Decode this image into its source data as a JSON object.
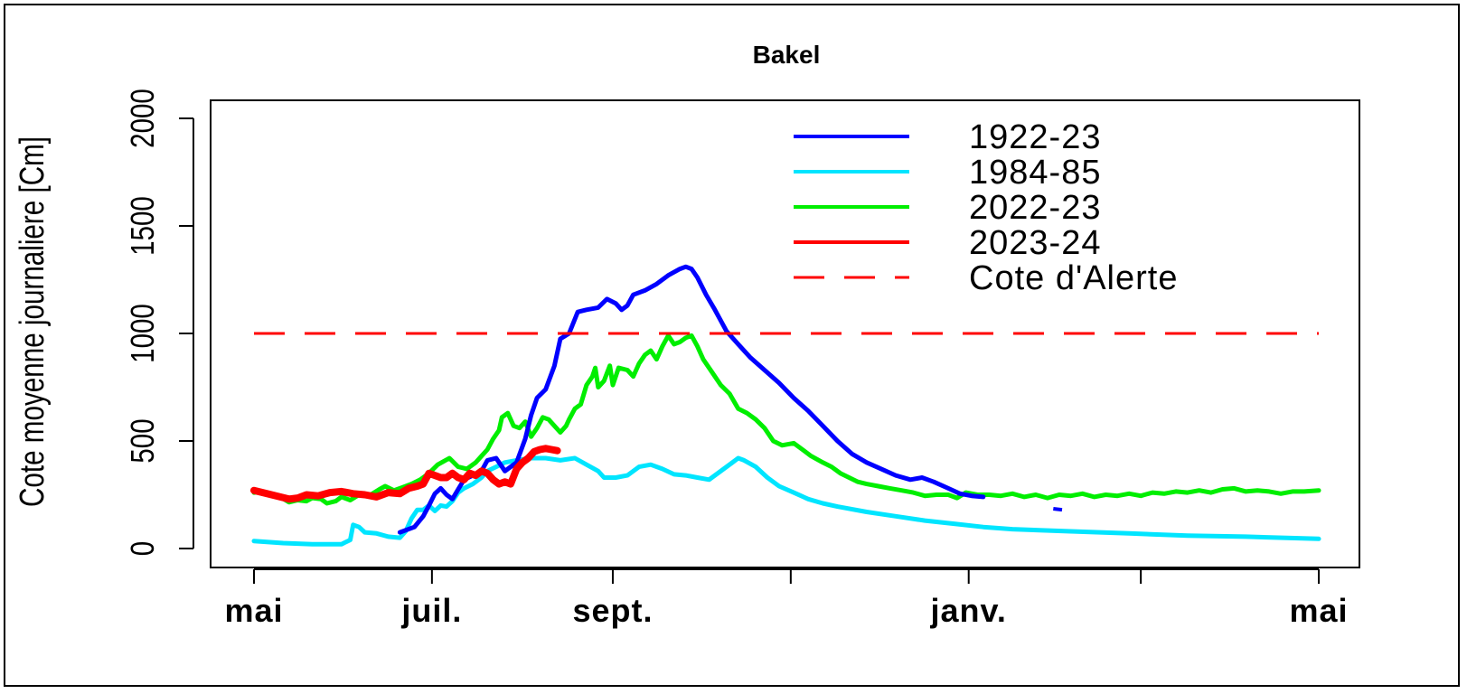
{
  "chart_data": {
    "type": "line",
    "title": "Bakel",
    "xlabel": "",
    "ylabel": "Cote moyenne journaliere [Cm]",
    "x_unit": "day of hydrological year (starting 1 May)",
    "x_ticks": [
      {
        "day": 0,
        "label": "mai"
      },
      {
        "day": 61,
        "label": "juil."
      },
      {
        "day": 123,
        "label": "sept."
      },
      {
        "day": 184,
        "label": ""
      },
      {
        "day": 245,
        "label": "janv."
      },
      {
        "day": 304,
        "label": ""
      },
      {
        "day": 365,
        "label": "mai"
      }
    ],
    "xlim": [
      0,
      365
    ],
    "ylim": [
      0,
      2000
    ],
    "y_ticks": [
      0,
      500,
      1000,
      1500,
      2000
    ],
    "grid": false,
    "legend_position": "top-right",
    "series": [
      {
        "name": "1922-23",
        "color": "#0000ff",
        "points": [
          [
            50,
            75
          ],
          [
            55,
            100
          ],
          [
            58,
            150
          ],
          [
            60,
            200
          ],
          [
            62,
            255
          ],
          [
            64,
            280
          ],
          [
            66,
            250
          ],
          [
            68,
            230
          ],
          [
            70,
            275
          ],
          [
            72,
            320
          ],
          [
            75,
            340
          ],
          [
            78,
            360
          ],
          [
            80,
            410
          ],
          [
            83,
            420
          ],
          [
            86,
            360
          ],
          [
            90,
            400
          ],
          [
            93,
            510
          ],
          [
            95,
            620
          ],
          [
            97,
            700
          ],
          [
            100,
            740
          ],
          [
            103,
            850
          ],
          [
            105,
            975
          ],
          [
            108,
            1000
          ],
          [
            111,
            1100
          ],
          [
            114,
            1110
          ],
          [
            118,
            1120
          ],
          [
            121,
            1160
          ],
          [
            124,
            1140
          ],
          [
            126,
            1110
          ],
          [
            128,
            1130
          ],
          [
            130,
            1180
          ],
          [
            134,
            1200
          ],
          [
            138,
            1230
          ],
          [
            142,
            1270
          ],
          [
            146,
            1300
          ],
          [
            148,
            1310
          ],
          [
            150,
            1300
          ],
          [
            152,
            1260
          ],
          [
            155,
            1180
          ],
          [
            158,
            1110
          ],
          [
            162,
            1010
          ],
          [
            166,
            950
          ],
          [
            170,
            890
          ],
          [
            175,
            830
          ],
          [
            180,
            770
          ],
          [
            185,
            700
          ],
          [
            190,
            640
          ],
          [
            195,
            570
          ],
          [
            200,
            500
          ],
          [
            205,
            440
          ],
          [
            210,
            400
          ],
          [
            215,
            370
          ],
          [
            220,
            340
          ],
          [
            225,
            320
          ],
          [
            229,
            330
          ],
          [
            233,
            310
          ],
          [
            238,
            280
          ],
          [
            242,
            255
          ],
          [
            246,
            245
          ],
          [
            250,
            240
          ]
        ]
      },
      {
        "name": "1984-85",
        "color": "#00e5ff",
        "points": [
          [
            0,
            35
          ],
          [
            10,
            25
          ],
          [
            20,
            20
          ],
          [
            30,
            20
          ],
          [
            33,
            40
          ],
          [
            34,
            110
          ],
          [
            36,
            100
          ],
          [
            38,
            75
          ],
          [
            42,
            70
          ],
          [
            46,
            55
          ],
          [
            50,
            50
          ],
          [
            52,
            80
          ],
          [
            54,
            140
          ],
          [
            56,
            180
          ],
          [
            58,
            180
          ],
          [
            60,
            200
          ],
          [
            62,
            175
          ],
          [
            64,
            200
          ],
          [
            66,
            195
          ],
          [
            68,
            220
          ],
          [
            70,
            260
          ],
          [
            72,
            280
          ],
          [
            75,
            300
          ],
          [
            78,
            330
          ],
          [
            80,
            360
          ],
          [
            83,
            380
          ],
          [
            86,
            400
          ],
          [
            90,
            410
          ],
          [
            95,
            420
          ],
          [
            100,
            420
          ],
          [
            105,
            410
          ],
          [
            110,
            420
          ],
          [
            114,
            390
          ],
          [
            118,
            360
          ],
          [
            120,
            330
          ],
          [
            124,
            330
          ],
          [
            128,
            340
          ],
          [
            132,
            380
          ],
          [
            136,
            390
          ],
          [
            140,
            370
          ],
          [
            144,
            345
          ],
          [
            148,
            340
          ],
          [
            152,
            330
          ],
          [
            156,
            320
          ],
          [
            160,
            360
          ],
          [
            164,
            400
          ],
          [
            166,
            420
          ],
          [
            168,
            410
          ],
          [
            172,
            380
          ],
          [
            176,
            330
          ],
          [
            180,
            290
          ],
          [
            185,
            260
          ],
          [
            190,
            230
          ],
          [
            195,
            210
          ],
          [
            200,
            195
          ],
          [
            210,
            170
          ],
          [
            220,
            150
          ],
          [
            230,
            130
          ],
          [
            240,
            115
          ],
          [
            250,
            100
          ],
          [
            260,
            90
          ],
          [
            280,
            80
          ],
          [
            300,
            70
          ],
          [
            320,
            60
          ],
          [
            340,
            55
          ],
          [
            365,
            45
          ]
        ]
      },
      {
        "name": "2022-23",
        "color": "#00ee00",
        "points": [
          [
            0,
            260
          ],
          [
            3,
            265
          ],
          [
            6,
            245
          ],
          [
            9,
            240
          ],
          [
            12,
            215
          ],
          [
            15,
            225
          ],
          [
            18,
            220
          ],
          [
            20,
            235
          ],
          [
            23,
            230
          ],
          [
            25,
            210
          ],
          [
            28,
            220
          ],
          [
            30,
            240
          ],
          [
            33,
            225
          ],
          [
            36,
            250
          ],
          [
            40,
            250
          ],
          [
            43,
            275
          ],
          [
            45,
            290
          ],
          [
            48,
            270
          ],
          [
            51,
            285
          ],
          [
            54,
            300
          ],
          [
            57,
            320
          ],
          [
            60,
            350
          ],
          [
            63,
            390
          ],
          [
            65,
            405
          ],
          [
            67,
            420
          ],
          [
            70,
            380
          ],
          [
            73,
            370
          ],
          [
            76,
            400
          ],
          [
            78,
            430
          ],
          [
            80,
            460
          ],
          [
            82,
            510
          ],
          [
            84,
            550
          ],
          [
            85,
            610
          ],
          [
            87,
            630
          ],
          [
            89,
            570
          ],
          [
            91,
            560
          ],
          [
            93,
            590
          ],
          [
            95,
            520
          ],
          [
            97,
            560
          ],
          [
            99,
            610
          ],
          [
            101,
            600
          ],
          [
            103,
            570
          ],
          [
            105,
            540
          ],
          [
            107,
            570
          ],
          [
            108,
            600
          ],
          [
            110,
            650
          ],
          [
            112,
            670
          ],
          [
            114,
            760
          ],
          [
            116,
            800
          ],
          [
            117,
            840
          ],
          [
            118,
            750
          ],
          [
            120,
            780
          ],
          [
            122,
            850
          ],
          [
            123,
            760
          ],
          [
            125,
            840
          ],
          [
            128,
            830
          ],
          [
            130,
            800
          ],
          [
            132,
            860
          ],
          [
            134,
            900
          ],
          [
            136,
            920
          ],
          [
            138,
            880
          ],
          [
            140,
            940
          ],
          [
            142,
            990
          ],
          [
            144,
            950
          ],
          [
            146,
            960
          ],
          [
            148,
            980
          ],
          [
            150,
            990
          ],
          [
            152,
            940
          ],
          [
            154,
            880
          ],
          [
            157,
            820
          ],
          [
            160,
            760
          ],
          [
            163,
            720
          ],
          [
            166,
            650
          ],
          [
            169,
            630
          ],
          [
            172,
            600
          ],
          [
            175,
            560
          ],
          [
            178,
            500
          ],
          [
            181,
            480
          ],
          [
            185,
            490
          ],
          [
            188,
            460
          ],
          [
            191,
            430
          ],
          [
            195,
            400
          ],
          [
            198,
            380
          ],
          [
            201,
            350
          ],
          [
            204,
            330
          ],
          [
            207,
            310
          ],
          [
            210,
            300
          ],
          [
            214,
            290
          ],
          [
            218,
            280
          ],
          [
            222,
            270
          ],
          [
            226,
            260
          ],
          [
            230,
            245
          ],
          [
            234,
            250
          ],
          [
            238,
            250
          ],
          [
            241,
            235
          ],
          [
            244,
            260
          ],
          [
            248,
            250
          ],
          [
            252,
            250
          ],
          [
            256,
            245
          ],
          [
            260,
            255
          ],
          [
            264,
            240
          ],
          [
            268,
            250
          ],
          [
            272,
            235
          ],
          [
            276,
            250
          ],
          [
            280,
            245
          ],
          [
            284,
            255
          ],
          [
            288,
            240
          ],
          [
            292,
            250
          ],
          [
            296,
            245
          ],
          [
            300,
            255
          ],
          [
            304,
            245
          ],
          [
            308,
            260
          ],
          [
            312,
            255
          ],
          [
            316,
            265
          ],
          [
            320,
            260
          ],
          [
            324,
            270
          ],
          [
            328,
            260
          ],
          [
            332,
            275
          ],
          [
            336,
            280
          ],
          [
            340,
            265
          ],
          [
            344,
            270
          ],
          [
            348,
            265
          ],
          [
            352,
            255
          ],
          [
            356,
            265
          ],
          [
            360,
            265
          ],
          [
            365,
            270
          ]
        ]
      },
      {
        "name": "2023-24",
        "color": "#ff0000",
        "points": [
          [
            0,
            270
          ],
          [
            3,
            260
          ],
          [
            6,
            250
          ],
          [
            9,
            240
          ],
          [
            12,
            230
          ],
          [
            15,
            235
          ],
          [
            18,
            250
          ],
          [
            22,
            245
          ],
          [
            26,
            260
          ],
          [
            30,
            265
          ],
          [
            34,
            255
          ],
          [
            38,
            250
          ],
          [
            42,
            240
          ],
          [
            46,
            260
          ],
          [
            50,
            255
          ],
          [
            53,
            280
          ],
          [
            56,
            290
          ],
          [
            58,
            300
          ],
          [
            60,
            350
          ],
          [
            62,
            340
          ],
          [
            64,
            330
          ],
          [
            66,
            330
          ],
          [
            68,
            350
          ],
          [
            70,
            330
          ],
          [
            72,
            320
          ],
          [
            74,
            350
          ],
          [
            76,
            340
          ],
          [
            78,
            360
          ],
          [
            80,
            350
          ],
          [
            82,
            320
          ],
          [
            84,
            300
          ],
          [
            86,
            310
          ],
          [
            88,
            300
          ],
          [
            90,
            370
          ],
          [
            92,
            400
          ],
          [
            94,
            420
          ],
          [
            96,
            450
          ],
          [
            98,
            460
          ],
          [
            100,
            465
          ],
          [
            102,
            460
          ],
          [
            104,
            455
          ]
        ]
      },
      {
        "name": "Cote d'Alerte",
        "color": "#ff0000",
        "style": "dashed",
        "points": [
          [
            0,
            1000
          ],
          [
            365,
            1000
          ]
        ]
      }
    ]
  }
}
